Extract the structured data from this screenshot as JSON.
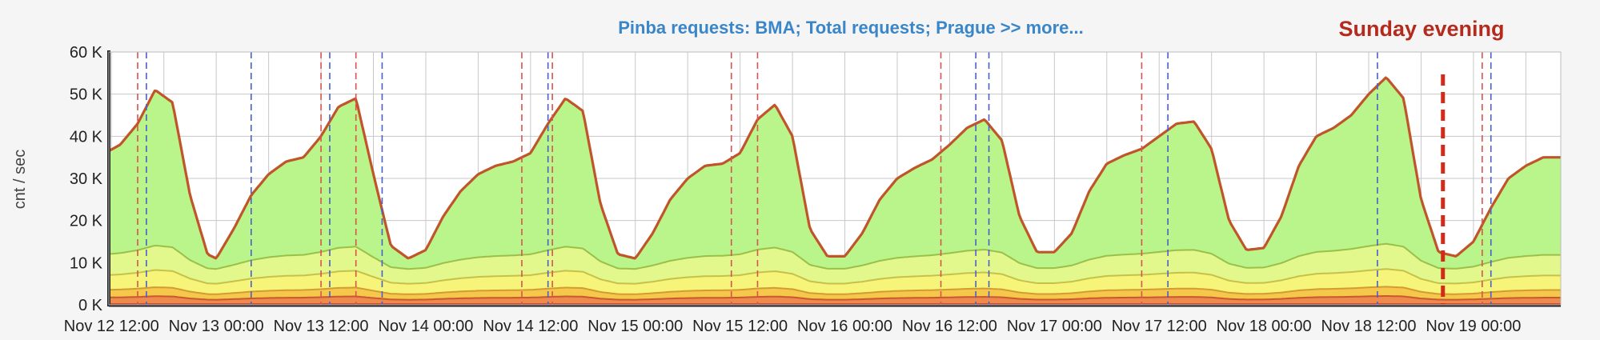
{
  "chart_data": {
    "type": "area",
    "title": "Pinba requests: BMA; Total requests; Prague >> more...",
    "annotation": "Sunday evening",
    "ylabel": "cnt / sec",
    "xlabel": "",
    "ylim": [
      0,
      60000
    ],
    "yticks": [
      0,
      10000,
      20000,
      30000,
      40000,
      50000,
      60000
    ],
    "ytick_labels": [
      "0 K",
      "10 K",
      "20 K",
      "30 K",
      "40 K",
      "50 K",
      "60 K"
    ],
    "xlim_hours": [
      0,
      166
    ],
    "xticks": [
      {
        "hour": 0,
        "label": "Nov 12 12:00"
      },
      {
        "hour": 12,
        "label": "Nov 13 00:00"
      },
      {
        "hour": 24,
        "label": "Nov 13 12:00"
      },
      {
        "hour": 36,
        "label": "Nov 14 00:00"
      },
      {
        "hour": 48,
        "label": "Nov 14 12:00"
      },
      {
        "hour": 60,
        "label": "Nov 15 00:00"
      },
      {
        "hour": 72,
        "label": "Nov 15 12:00"
      },
      {
        "hour": 84,
        "label": "Nov 16 00:00"
      },
      {
        "hour": 96,
        "label": "Nov 16 12:00"
      },
      {
        "hour": 108,
        "label": "Nov 17 00:00"
      },
      {
        "hour": 120,
        "label": "Nov 17 12:00"
      },
      {
        "hour": 132,
        "label": "Nov 18 00:00"
      },
      {
        "hour": 144,
        "label": "Nov 18 12:00"
      },
      {
        "hour": 156,
        "label": "Nov 19 00:00"
      }
    ],
    "grid": true,
    "total": {
      "x": [
        -0.3,
        1,
        3,
        5,
        7,
        9,
        11,
        12,
        14,
        16,
        18,
        20,
        22,
        24,
        26,
        28,
        30,
        32,
        34,
        36,
        38,
        40,
        42,
        44,
        46,
        48,
        50,
        52,
        54,
        56,
        58,
        60,
        62,
        64,
        66,
        68,
        70,
        72,
        74,
        76,
        78,
        80,
        82,
        84,
        86,
        88,
        90,
        92,
        94,
        96,
        98,
        100,
        102,
        104,
        106,
        108,
        110,
        112,
        114,
        116,
        118,
        120,
        122,
        124,
        126,
        128,
        130,
        132,
        134,
        136,
        138,
        140,
        142,
        144,
        146,
        148,
        150,
        152,
        154,
        156,
        158,
        160,
        162,
        164,
        166
      ],
      "y": [
        36500,
        38000,
        43000,
        51000,
        48000,
        26000,
        12000,
        11000,
        18000,
        26000,
        31000,
        34000,
        35000,
        40000,
        47000,
        49000,
        31000,
        14000,
        11000,
        13000,
        21000,
        27000,
        31000,
        33000,
        34000,
        36000,
        43000,
        49000,
        46000,
        24000,
        12000,
        11000,
        17000,
        25000,
        30000,
        33000,
        33500,
        36000,
        44000,
        47500,
        40000,
        18000,
        11500,
        11500,
        17000,
        25000,
        30000,
        32500,
        34500,
        38000,
        42000,
        44000,
        39000,
        21000,
        12500,
        12500,
        17000,
        27000,
        33500,
        35500,
        37000,
        40000,
        43000,
        43500,
        37000,
        20000,
        13000,
        13500,
        21000,
        33000,
        40000,
        42000,
        45000,
        50000,
        54000,
        49000,
        25000,
        12500,
        11500,
        15000,
        23000,
        30000,
        33000,
        35000,
        35000
      ]
    },
    "layers": [
      {
        "base": 1200,
        "amp": 900
      },
      {
        "base": 2500,
        "amp": 1800
      },
      {
        "base": 5000,
        "amp": 3500
      },
      {
        "base": 8500,
        "amp": 6000
      }
    ],
    "markers": {
      "red_dashed": [
        3,
        24,
        28,
        47,
        50.5,
        71,
        74,
        95,
        118,
        157
      ],
      "blue_dashed": [
        4,
        16,
        25,
        31,
        50,
        99,
        100.5,
        121,
        145,
        158
      ],
      "highlight": 152.5
    }
  }
}
